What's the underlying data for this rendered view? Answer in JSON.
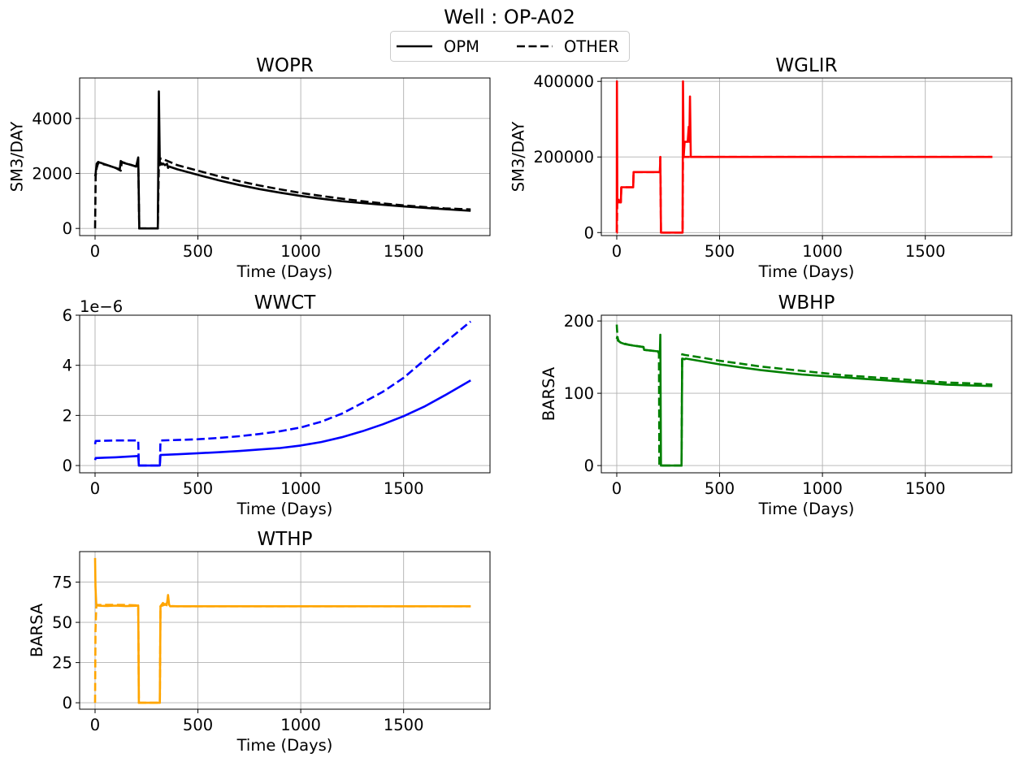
{
  "figure": {
    "title": "Well : OP-A02",
    "legend": {
      "placement": "upper-center",
      "entries": [
        {
          "label": "OPM",
          "style": "solid"
        },
        {
          "label": "OTHER",
          "style": "dashed"
        }
      ]
    }
  },
  "chart_data": [
    {
      "type": "line",
      "title": "WOPR",
      "xlabel": "Time (Days)",
      "ylabel": "SM3/DAY",
      "xlim": [
        -75,
        1920
      ],
      "ylim": [
        -260,
        5470
      ],
      "xticks": [
        "0",
        "500",
        "1000",
        "1500"
      ],
      "yticks": [
        "0",
        "2000",
        "4000"
      ],
      "offset_text": "",
      "grid": true,
      "color": "#000000",
      "series": [
        {
          "name": "OPM",
          "style": "solid",
          "x": [
            0,
            3,
            8,
            15,
            20,
            30,
            45,
            60,
            80,
            100,
            120,
            125,
            130,
            140,
            160,
            180,
            200,
            210,
            215,
            305,
            310,
            315,
            320,
            325,
            330,
            340,
            350,
            355,
            360,
            400,
            500,
            600,
            700,
            800,
            900,
            1000,
            1100,
            1200,
            1300,
            1400,
            1500,
            1600,
            1700,
            1826
          ],
          "y": [
            1900,
            2000,
            2350,
            2420,
            2400,
            2380,
            2340,
            2300,
            2250,
            2200,
            2150,
            2450,
            2420,
            2380,
            2340,
            2300,
            2250,
            2580,
            0,
            0,
            4980,
            2300,
            2380,
            2320,
            2360,
            2300,
            2350,
            2200,
            2250,
            2150,
            1950,
            1750,
            1580,
            1430,
            1300,
            1180,
            1080,
            990,
            920,
            860,
            800,
            750,
            700,
            640
          ]
        },
        {
          "name": "OTHER",
          "style": "dashed",
          "x": [
            0,
            3,
            8,
            15,
            30,
            60,
            100,
            125,
            130,
            160,
            200,
            210,
            215,
            305,
            310,
            315,
            320,
            330,
            350,
            400,
            500,
            600,
            700,
            800,
            900,
            1000,
            1100,
            1200,
            1300,
            1400,
            1500,
            1600,
            1700,
            1826
          ],
          "y": [
            0,
            1900,
            2200,
            2380,
            2350,
            2300,
            2200,
            2100,
            2420,
            2340,
            2250,
            2500,
            0,
            0,
            2350,
            2500,
            2540,
            2520,
            2460,
            2300,
            2100,
            1900,
            1720,
            1560,
            1420,
            1290,
            1180,
            1080,
            990,
            910,
            840,
            780,
            730,
            690
          ]
        }
      ]
    },
    {
      "type": "line",
      "title": "WGLIR",
      "xlabel": "Time (Days)",
      "ylabel": "SM3/DAY",
      "xlim": [
        -75,
        1920
      ],
      "ylim": [
        -8000,
        409000
      ],
      "xticks": [
        "0",
        "500",
        "1000",
        "1500"
      ],
      "yticks": [
        "0",
        "200000",
        "400000"
      ],
      "offset_text": "",
      "grid": true,
      "color": "#ff0000",
      "series": [
        {
          "name": "OPM",
          "style": "solid",
          "x": [
            0,
            1,
            3,
            8,
            20,
            22,
            50,
            80,
            82,
            130,
            133,
            210,
            212,
            215,
            320,
            322,
            325,
            330,
            345,
            350,
            353,
            356,
            360,
            365,
            1826
          ],
          "y": [
            0,
            400000,
            90000,
            80000,
            80000,
            120000,
            120000,
            120000,
            160000,
            160000,
            160000,
            160000,
            200000,
            0,
            0,
            400000,
            200000,
            240000,
            240000,
            280000,
            240000,
            360000,
            200000,
            200000,
            200000
          ]
        },
        {
          "name": "OTHER",
          "style": "dashed",
          "x": [
            0,
            1,
            3,
            20,
            22,
            80,
            82,
            133,
            210,
            212,
            215,
            320,
            322,
            330,
            360,
            1826
          ],
          "y": [
            0,
            0,
            90000,
            80000,
            120000,
            120000,
            160000,
            160000,
            160000,
            200000,
            0,
            0,
            200000,
            200000,
            200000,
            200000
          ]
        }
      ]
    },
    {
      "type": "line",
      "title": "WWCT",
      "xlabel": "Time (Days)",
      "ylabel": "",
      "xlim": [
        -75,
        1920
      ],
      "ylim": [
        -2.9e-07,
        6e-06
      ],
      "xticks": [
        "0",
        "500",
        "1000",
        "1500"
      ],
      "yticks": [
        "0",
        "2",
        "4",
        "6"
      ],
      "offset_text": "1e−6",
      "grid": true,
      "color": "#0000ff",
      "series": [
        {
          "name": "OPM",
          "style": "solid",
          "x": [
            0,
            3,
            100,
            210,
            213,
            315,
            318,
            400,
            500,
            600,
            700,
            800,
            900,
            1000,
            1100,
            1200,
            1300,
            1400,
            1500,
            1600,
            1700,
            1826
          ],
          "y": [
            2.2e-07,
            3e-07,
            3.3e-07,
            3.8e-07,
            0,
            0,
            4.2e-07,
            4.5e-07,
            4.9e-07,
            5.3e-07,
            5.8e-07,
            6.4e-07,
            7e-07,
            8e-07,
            9.4e-07,
            1.13e-06,
            1.37e-06,
            1.65e-06,
            1.97e-06,
            2.35e-06,
            2.8e-06,
            3.4e-06
          ]
        },
        {
          "name": "OTHER",
          "style": "dashed",
          "x": [
            0,
            3,
            100,
            210,
            213,
            315,
            318,
            400,
            500,
            600,
            700,
            800,
            900,
            1000,
            1100,
            1200,
            1300,
            1400,
            1500,
            1600,
            1700,
            1826
          ],
          "y": [
            8.5e-07,
            9.8e-07,
            1e-06,
            1e-06,
            0,
            0,
            1e-06,
            1.02e-06,
            1.05e-06,
            1.1e-06,
            1.17e-06,
            1.26e-06,
            1.37e-06,
            1.52e-06,
            1.75e-06,
            2.07e-06,
            2.5e-06,
            2.95e-06,
            3.5e-06,
            4.2e-06,
            4.9e-06,
            5.75e-06
          ]
        }
      ]
    },
    {
      "type": "line",
      "title": "WBHP",
      "xlabel": "Time (Days)",
      "ylabel": "BARSA",
      "xlim": [
        -75,
        1920
      ],
      "ylim": [
        -10,
        208
      ],
      "xticks": [
        "0",
        "500",
        "1000",
        "1500"
      ],
      "yticks": [
        "0",
        "100",
        "200"
      ],
      "offset_text": "",
      "grid": true,
      "color": "#008000",
      "series": [
        {
          "name": "OPM",
          "style": "solid",
          "x": [
            0,
            2,
            10,
            20,
            40,
            60,
            80,
            130,
            133,
            200,
            210,
            212,
            215,
            315,
            318,
            330,
            335,
            400,
            500,
            600,
            700,
            800,
            900,
            1000,
            1100,
            1200,
            1300,
            1400,
            1500,
            1600,
            1700,
            1826
          ],
          "y": [
            175,
            178,
            172,
            170,
            168,
            167,
            166,
            164,
            160,
            158,
            157,
            181,
            0,
            0,
            148,
            147,
            148,
            145,
            140,
            136,
            132,
            129,
            126,
            124,
            122,
            120,
            118,
            116,
            114,
            112,
            111,
            110
          ]
        },
        {
          "name": "OTHER",
          "style": "dashed",
          "x": [
            0,
            1,
            5,
            20,
            60,
            130,
            133,
            200,
            205,
            207,
            212,
            315,
            318,
            330,
            400,
            500,
            600,
            700,
            800,
            900,
            1000,
            1100,
            1200,
            1300,
            1400,
            1500,
            1600,
            1700,
            1826
          ],
          "y": [
            195,
            190,
            173,
            170,
            167,
            164,
            160,
            158,
            155,
            0,
            0,
            0,
            154,
            153,
            150,
            145,
            141,
            137,
            134,
            131,
            128,
            125,
            123,
            121,
            119,
            117,
            115,
            114,
            112
          ]
        }
      ]
    },
    {
      "type": "line",
      "title": "WTHP",
      "xlabel": "Time (Days)",
      "ylabel": "BARSA",
      "xlim": [
        -75,
        1920
      ],
      "ylim": [
        -4,
        94
      ],
      "xticks": [
        "0",
        "500",
        "1000",
        "1500"
      ],
      "yticks": [
        "0",
        "25",
        "50",
        "75"
      ],
      "offset_text": "",
      "grid": true,
      "color": "#ffa500",
      "series": [
        {
          "name": "OPM",
          "style": "solid",
          "x": [
            0,
            2,
            6,
            10,
            30,
            60,
            100,
            150,
            200,
            210,
            213,
            315,
            318,
            330,
            340,
            350,
            355,
            360,
            365,
            400,
            600,
            800,
            1000,
            1200,
            1400,
            1600,
            1826
          ],
          "y": [
            90,
            72,
            61,
            60.5,
            60.3,
            60.2,
            60.4,
            60.1,
            60.3,
            60.5,
            0,
            0,
            60,
            62,
            61,
            62,
            67,
            61,
            60,
            60,
            60,
            60,
            60,
            60,
            60,
            60,
            60
          ]
        },
        {
          "name": "OTHER",
          "style": "dashed",
          "x": [
            0,
            2,
            6,
            10,
            60,
            150,
            210,
            213,
            315,
            318,
            340,
            360,
            400,
            800,
            1200,
            1600,
            1826
          ],
          "y": [
            0,
            45,
            60,
            60.8,
            60.9,
            60.8,
            60.5,
            0,
            0,
            60,
            61,
            60.2,
            60,
            60,
            60,
            60,
            60
          ]
        }
      ]
    }
  ]
}
